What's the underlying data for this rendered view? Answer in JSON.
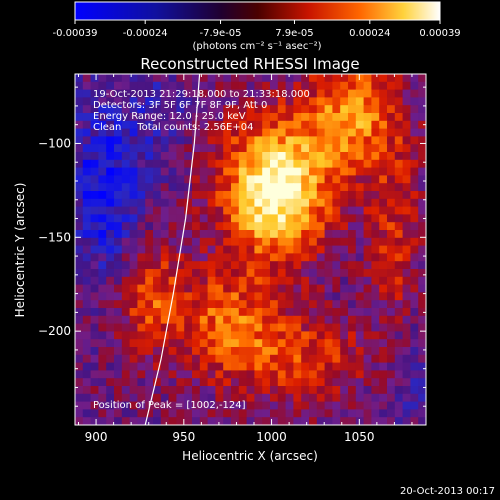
{
  "colorbar": {
    "tick_labels": [
      "-0.00039",
      "-0.00024",
      "-7.9e-05",
      "7.9e-05",
      "0.00024",
      "0.00039"
    ],
    "unit_label": "(photons cm⁻² s⁻¹ asec⁻²)",
    "range": [
      -0.00039,
      0.00039
    ]
  },
  "chart_data": {
    "type": "heatmap",
    "title": "Reconstructed RHESSI Image",
    "xlabel": "Heliocentric X (arcsec)",
    "ylabel": "Heliocentric Y (arcsec)",
    "xlim": [
      888,
      1088
    ],
    "ylim": [
      -250,
      -63
    ],
    "x_ticks": [
      900,
      950,
      1000,
      1050
    ],
    "y_ticks": [
      -100,
      -150,
      -200
    ],
    "x_tick_labels": [
      "900",
      "950",
      "1000",
      "1050"
    ],
    "y_tick_labels": [
      "−100",
      "−150",
      "−200"
    ],
    "info_lines": [
      "19-Oct-2013 21:29:18.000 to 21:33:18.000",
      "Detectors: 3F 5F 6F 7F 8F 9F, Att 0",
      "Energy Range: 12.0 - 25.0 keV",
      "Clean     Total counts: 2.56E+04"
    ],
    "peak_label": "Position of Peak = [1002,-124]",
    "peak": [
      1002,
      -124
    ],
    "limb_curve": [
      [
        928,
        -250
      ],
      [
        937,
        -215
      ],
      [
        944,
        -180
      ],
      [
        951,
        -140
      ],
      [
        956,
        -100
      ],
      [
        959,
        -63
      ]
    ],
    "colormap": "rhessi blue-black-red-yellow-white"
  },
  "footer": {
    "timestamp": "20-Oct-2013 00:17"
  }
}
